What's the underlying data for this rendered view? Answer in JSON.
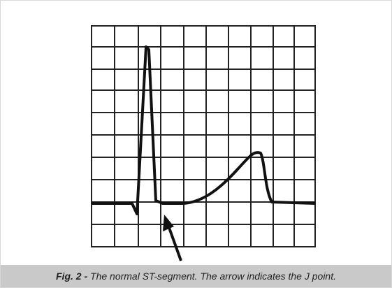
{
  "caption": {
    "label": "Fig. 2 -",
    "text": "The normal ST-segment. The arrow indicates the J point."
  }
}
